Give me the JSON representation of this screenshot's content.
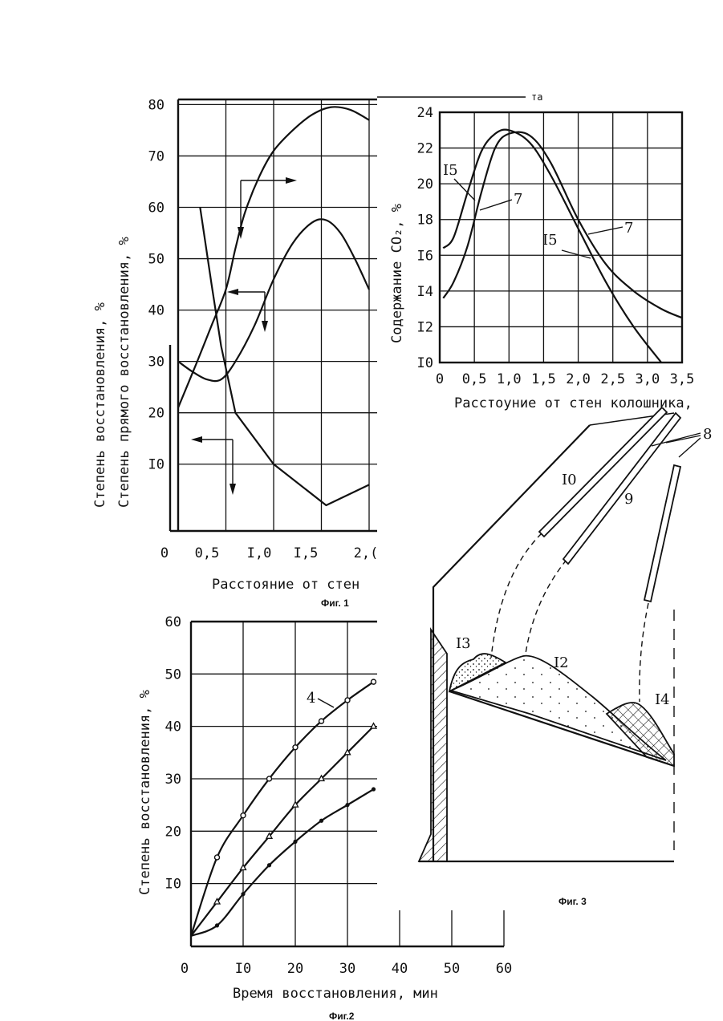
{
  "chart_data": [
    {
      "id": "fig1",
      "type": "line",
      "caption": "Фиг. 1",
      "ylabel_outer": "Степень восстановления, %",
      "ylabel_inner": "Степень прямого восстановления, %",
      "xlabel": "Расстояние от стен",
      "x_ticks": [
        "0",
        "0,5",
        "I,0",
        "I,5",
        "2,("
      ],
      "y_ticks": [
        "80",
        "70",
        "60",
        "50",
        "40",
        "30",
        "20",
        "I0"
      ],
      "y_tick_values": [
        80,
        70,
        60,
        50,
        40,
        30,
        20,
        10
      ],
      "xlim": [
        0,
        2.0
      ],
      "ylim": [
        -3,
        81
      ],
      "series": [
        {
          "x": [
            0.0,
            0.2,
            0.35,
            0.5,
            0.6,
            0.7,
            0.85,
            1.0,
            1.2,
            1.4,
            1.6,
            1.8,
            2.0
          ],
          "values": [
            21,
            30,
            37,
            44,
            52,
            59,
            66,
            71,
            75,
            78,
            79.5,
            79,
            77
          ]
        },
        {
          "x": [
            0.0,
            0.15,
            0.3,
            0.45,
            0.6,
            0.8,
            1.0,
            1.2,
            1.4,
            1.55,
            1.7,
            1.85,
            2.0
          ],
          "values": [
            30,
            28,
            26.5,
            26.5,
            30,
            37,
            46,
            53,
            57,
            57.5,
            55,
            50,
            44
          ]
        },
        {
          "x": [
            0.23,
            0.35,
            0.45,
            0.6,
            1.0,
            1.55,
            2.0
          ],
          "values": [
            60,
            45,
            33,
            20,
            10,
            2,
            6
          ]
        }
      ]
    },
    {
      "id": "fig_co2",
      "type": "line",
      "header_fragment": "та",
      "ylabel": "Содержание CO₂, %",
      "xlabel": "Расстоуние от стен колошника,",
      "x_ticks": [
        "0",
        "0,5",
        "1,0",
        "1,5",
        "2,0",
        "2,5",
        "3,0",
        "3,5"
      ],
      "x_tick_values": [
        0,
        0.5,
        1.0,
        1.5,
        2.0,
        2.5,
        3.0,
        3.5
      ],
      "y_ticks": [
        "24",
        "22",
        "20",
        "18",
        "I6",
        "I4",
        "I2",
        "I0"
      ],
      "y_tick_values": [
        24,
        22,
        20,
        18,
        16,
        14,
        12,
        10
      ],
      "xlim": [
        0,
        3.5
      ],
      "ylim": [
        10,
        24
      ],
      "series": [
        {
          "name": "I5",
          "x": [
            0.05,
            0.2,
            0.4,
            0.6,
            0.8,
            1.0,
            1.3,
            1.6,
            2.0,
            2.4,
            2.8,
            3.2
          ],
          "values": [
            16.4,
            17,
            19.5,
            21.8,
            22.8,
            23,
            22.3,
            20.5,
            17.5,
            14.5,
            12,
            10
          ]
        },
        {
          "name": "7",
          "x": [
            0.05,
            0.2,
            0.4,
            0.6,
            0.8,
            1.0,
            1.3,
            1.6,
            2.0,
            2.4,
            2.8,
            3.2,
            3.5
          ],
          "values": [
            13.6,
            14.5,
            16.5,
            19.5,
            22,
            22.8,
            22.7,
            21.2,
            18,
            15.5,
            14,
            13,
            12.5
          ]
        }
      ],
      "curve_labels": [
        "I5",
        "7",
        "I5",
        "7"
      ]
    },
    {
      "id": "fig2",
      "type": "line",
      "caption": "Фиг.2",
      "ylabel": "Степень восстановления, %",
      "xlabel": "Время восстановления, мин",
      "x_ticks": [
        "0",
        "I0",
        "20",
        "30",
        "40",
        "50",
        "60"
      ],
      "x_tick_values": [
        0,
        10,
        20,
        30,
        40,
        50,
        60
      ],
      "y_ticks": [
        "60",
        "50",
        "40",
        "30",
        "20",
        "I0"
      ],
      "y_tick_values": [
        60,
        50,
        40,
        30,
        20,
        10
      ],
      "xlim": [
        0,
        60
      ],
      "ylim": [
        -2,
        60
      ],
      "curve_label": "4",
      "series": [
        {
          "name": "4",
          "marker": "circle",
          "x": [
            0,
            5,
            10,
            15,
            20,
            25,
            30,
            35
          ],
          "values": [
            0,
            15,
            23,
            30,
            36,
            41,
            45,
            48.5
          ]
        },
        {
          "marker": "triangle",
          "x": [
            0,
            5,
            10,
            15,
            20,
            25,
            30,
            35
          ],
          "values": [
            0,
            6.5,
            13,
            19,
            25,
            30,
            35,
            40
          ]
        },
        {
          "marker": "dot",
          "x": [
            0,
            5,
            10,
            15,
            20,
            25,
            30,
            35
          ],
          "values": [
            0,
            2,
            8,
            13.5,
            18,
            22,
            25,
            28
          ]
        }
      ]
    }
  ],
  "fig3": {
    "caption": "Фиг. 3",
    "labels": [
      "I0",
      "9",
      "8",
      "I3",
      "I2",
      "I4"
    ]
  }
}
